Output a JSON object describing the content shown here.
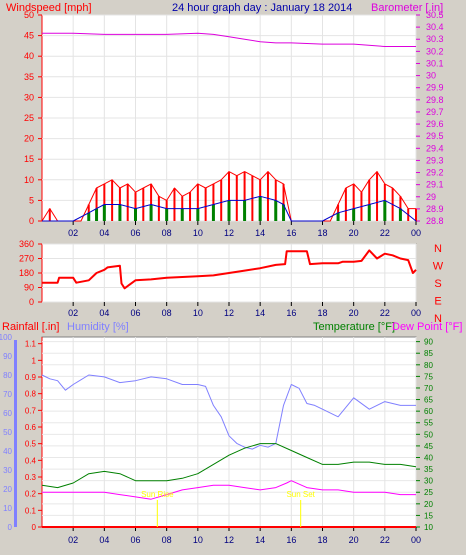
{
  "colors": {
    "background": "#d4d0c8",
    "panel": "#ffffff",
    "wind_red": "#ff0000",
    "wind_gust_red": "#ff0000",
    "wind_green": "#008000",
    "wind_blue": "#0000cc",
    "barometer": "#dd00dd",
    "direction": "#ff0000",
    "rain": "#ff0000",
    "humidity": "#8080ff",
    "temperature": "#008000",
    "dewpoint": "#ff00ff",
    "title_blue": "#0000aa",
    "sun_marker": "#ffff00"
  },
  "chart_data": [
    {
      "type": "line",
      "title": "24 hour graph day : January 18 2014",
      "left_axis_label": "Windspeed [mph]",
      "right_axis_label": "Barometer [.in]",
      "left_ticks": [
        "0",
        "5",
        "10",
        "15",
        "20",
        "25",
        "30",
        "35",
        "40",
        "45",
        "50"
      ],
      "right_ticks": [
        "28.8",
        "28.9",
        "29",
        "29.1",
        "29.2",
        "29.3",
        "29.4",
        "29.5",
        "29.6",
        "29.7",
        "29.8",
        "29.9",
        "30",
        "30.1",
        "30.2",
        "30.3",
        "30.4",
        "30.5"
      ],
      "x_ticks": [
        "02",
        "04",
        "06",
        "08",
        "10",
        "12",
        "14",
        "16",
        "18",
        "20",
        "22",
        "00"
      ],
      "ylim_left": [
        0,
        50
      ],
      "ylim_right": [
        28.8,
        30.5
      ],
      "series": [
        {
          "name": "Windspeed",
          "kind": "gust",
          "x": [
            0,
            0.5,
            1,
            1.5,
            2,
            2.5,
            3,
            3.5,
            4,
            4.5,
            5,
            5.5,
            6,
            6.5,
            7,
            7.5,
            8,
            8.5,
            9,
            9.5,
            10,
            10.5,
            11,
            11.5,
            12,
            12.5,
            13,
            13.5,
            14,
            14.5,
            15,
            15.5,
            16,
            16.5,
            17,
            17.5,
            18,
            18.5,
            19,
            19.5,
            20,
            20.5,
            21,
            21.5,
            22,
            22.5,
            23,
            23.5,
            24
          ],
          "values": [
            0,
            3,
            0,
            0,
            0,
            0,
            4,
            8,
            9,
            10,
            8,
            9,
            7,
            8,
            9,
            6,
            5,
            8,
            6,
            7,
            9,
            8,
            9,
            10,
            12,
            11,
            12,
            11,
            10,
            12,
            10,
            9,
            0,
            0,
            0,
            0,
            0,
            0,
            4,
            8,
            9,
            7,
            10,
            12,
            9,
            8,
            6,
            3,
            3
          ]
        },
        {
          "name": "Windspeed",
          "kind": "average",
          "x": [
            0,
            1,
            2,
            3,
            3.5,
            4,
            5,
            6,
            7,
            8,
            9,
            10,
            11,
            12,
            13,
            14,
            15,
            15.5,
            16,
            18,
            19,
            20,
            21,
            22,
            23,
            24
          ],
          "values": [
            0,
            0,
            0,
            2,
            3,
            4,
            4,
            3,
            4,
            3,
            3,
            3,
            4,
            5,
            5,
            6,
            5,
            4,
            0,
            0,
            2,
            3,
            4,
            5,
            3,
            0
          ]
        },
        {
          "name": "Barometer",
          "kind": "pressure",
          "x": [
            0,
            2,
            4,
            6,
            8,
            10,
            11,
            12,
            13,
            14,
            15,
            16,
            18,
            20,
            22,
            24
          ],
          "values": [
            30.35,
            30.35,
            30.34,
            30.34,
            30.34,
            30.35,
            30.34,
            30.32,
            30.3,
            30.28,
            30.27,
            30.27,
            30.26,
            30.26,
            30.24,
            30.24
          ]
        }
      ]
    },
    {
      "type": "line",
      "left_ticks": [
        "0",
        "90",
        "180",
        "270",
        "360"
      ],
      "right_labels": [
        "N",
        "W",
        "S",
        "E",
        "N"
      ],
      "x_ticks": [
        "02",
        "04",
        "06",
        "08",
        "10",
        "12",
        "14",
        "16",
        "18",
        "20",
        "22",
        "00"
      ],
      "ylim": [
        0,
        360
      ],
      "series": [
        {
          "name": "Wind direction",
          "x": [
            0,
            1,
            1.1,
            2,
            2.2,
            3,
            3.5,
            4,
            4.2,
            5,
            5.1,
            5.3,
            6,
            7,
            8,
            9,
            10,
            11,
            12,
            13,
            14,
            15,
            15.6,
            15.7,
            16,
            17,
            17.2,
            18,
            19,
            19.3,
            20,
            20.5,
            21,
            21.5,
            22,
            22.5,
            23,
            23.5,
            23.8,
            24
          ],
          "values": [
            120,
            120,
            150,
            150,
            120,
            135,
            180,
            200,
            215,
            225,
            115,
            85,
            135,
            140,
            150,
            155,
            160,
            165,
            180,
            195,
            210,
            230,
            235,
            315,
            315,
            315,
            235,
            240,
            240,
            250,
            250,
            255,
            320,
            270,
            300,
            290,
            270,
            260,
            180,
            200
          ]
        }
      ]
    },
    {
      "type": "line",
      "labels": [
        "Rainfall [.in]",
        "Humidity [%]",
        "Temperature [°F]",
        "Dew Point [°F]"
      ],
      "rain_ticks": [
        "0",
        "0.1",
        "0.2",
        "0.3",
        "0.4",
        "0.5",
        "0.6",
        "0.7",
        "0.8",
        "0.9",
        "1",
        "1.1"
      ],
      "humidity_ticks": [
        "0",
        "10",
        "20",
        "30",
        "40",
        "50",
        "60",
        "70",
        "80",
        "90",
        "100"
      ],
      "temp_ticks": [
        "10",
        "15",
        "20",
        "25",
        "30",
        "35",
        "40",
        "45",
        "50",
        "55",
        "60",
        "65",
        "70",
        "75",
        "80",
        "85",
        "90"
      ],
      "x_ticks": [
        "02",
        "04",
        "06",
        "08",
        "10",
        "12",
        "14",
        "16",
        "18",
        "20",
        "22",
        "00"
      ],
      "ylim_temp": [
        10,
        92
      ],
      "ylim_humidity": [
        0,
        100
      ],
      "ylim_rain": [
        0,
        1.14
      ],
      "series": [
        {
          "name": "Humidity",
          "x": [
            0,
            0.5,
            1,
            1.5,
            2,
            3,
            4,
            5,
            6,
            7,
            8,
            9,
            10,
            10.5,
            11,
            11.5,
            12,
            12.5,
            13,
            13.5,
            14,
            14.5,
            15,
            15.5,
            16,
            16.5,
            17,
            17.5,
            18,
            19,
            20,
            21,
            22,
            23,
            24
          ],
          "values": [
            80,
            78,
            77,
            72,
            75,
            80,
            79,
            76,
            77,
            79,
            78,
            75,
            75,
            74,
            64,
            58,
            48,
            44,
            42,
            41,
            43,
            42,
            44,
            64,
            75,
            73,
            65,
            64,
            62,
            58,
            68,
            62,
            66,
            64,
            64
          ]
        },
        {
          "name": "Temperature",
          "x": [
            0,
            1,
            2,
            3,
            4,
            5,
            6,
            7,
            8,
            9,
            10,
            11,
            12,
            13,
            14,
            15,
            16,
            17,
            18,
            19,
            20,
            21,
            22,
            23,
            24
          ],
          "values": [
            28,
            27,
            29,
            33,
            34,
            33,
            30,
            30,
            30,
            31,
            33,
            37,
            41,
            44,
            46,
            46,
            43,
            40,
            37,
            37,
            38,
            38,
            37,
            37,
            36
          ]
        },
        {
          "name": "Dew Point",
          "x": [
            0,
            1,
            2,
            3,
            4,
            5,
            6,
            7,
            8,
            9,
            10,
            11,
            12,
            13,
            14,
            15,
            15.7,
            16,
            17,
            18,
            19,
            20,
            21,
            22,
            23,
            24
          ],
          "values": [
            25,
            25,
            25,
            25,
            25,
            24,
            23,
            22,
            24,
            26,
            27,
            28,
            28,
            27,
            26,
            27,
            29,
            30,
            27,
            26,
            26,
            25,
            25,
            25,
            24,
            24
          ]
        },
        {
          "name": "Rainfall",
          "x": [
            0,
            24
          ],
          "values": [
            0,
            0
          ]
        }
      ],
      "annotations": [
        {
          "text": "Sun Rise",
          "x": 7.4
        },
        {
          "text": "Sun Set",
          "x": 16.6
        }
      ]
    }
  ]
}
